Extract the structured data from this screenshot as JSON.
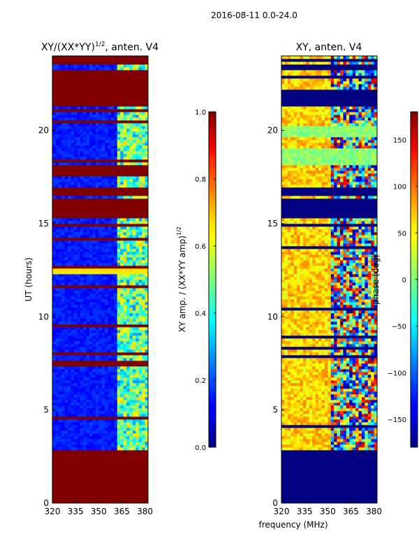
{
  "suptitle": "2016-08-11 0.0-24.0",
  "shared_xlabel": "frequency (MHz)",
  "chart_data": [
    {
      "type": "heatmap",
      "title_main": "XY/(XX*YY)",
      "title_sup": "1/2",
      "title_tail": ", anten. V4",
      "xlabel": "",
      "ylabel": "UT (hours)",
      "xlim": [
        320,
        382
      ],
      "ylim": [
        0,
        24
      ],
      "xticks": [
        320,
        335,
        350,
        365,
        380
      ],
      "yticks": [
        0,
        5,
        10,
        15,
        20
      ],
      "colorbar": {
        "label_main": "XY amp. / (XX*YY amp)",
        "label_sup": "1/2",
        "range": [
          0.0,
          1.0
        ],
        "ticks": [
          "0.0",
          "0.2",
          "0.4",
          "0.6",
          "0.8",
          "1.0"
        ],
        "tick_values": [
          0.0,
          0.2,
          0.4,
          0.6,
          0.8,
          1.0
        ]
      },
      "background_value": 0.15,
      "active_band_value": 0.45,
      "flagged_value": 1.0,
      "flagged_hours": [
        [
          0,
          2.8
        ],
        [
          15.3,
          16.3
        ],
        [
          16.5,
          17.0
        ],
        [
          17.6,
          18.1
        ],
        [
          21.3,
          23.3
        ],
        [
          23.6,
          24.0
        ]
      ],
      "bright_hours": [
        [
          12.35,
          12.6
        ]
      ],
      "bright_value": 0.65,
      "active_band_mhz": [
        363,
        382
      ]
    },
    {
      "type": "heatmap",
      "title": "XY, anten. V4",
      "xlabel": "frequency (MHz)",
      "ylabel": "",
      "xlim": [
        320,
        382
      ],
      "ylim": [
        0,
        24
      ],
      "xticks": [
        320,
        335,
        350,
        365,
        380
      ],
      "yticks": [
        0,
        5,
        10,
        15,
        20
      ],
      "colorbar": {
        "label": "phase (deg)",
        "range": [
          -180,
          180
        ],
        "ticks": [
          "−150",
          "−100",
          "−50",
          "0",
          "50",
          "100",
          "150"
        ],
        "tick_values": [
          -150,
          -100,
          -50,
          0,
          50,
          100,
          150
        ]
      },
      "background_value": 60,
      "flagged_value": -180,
      "flagged_hours": [
        [
          0,
          2.8
        ],
        [
          15.3,
          16.3
        ],
        [
          16.5,
          17.0
        ],
        [
          21.3,
          22.2
        ],
        [
          23.3,
          23.6
        ]
      ],
      "green_hours": [
        [
          18.1,
          19.0
        ],
        [
          19.6,
          20.3
        ]
      ],
      "green_value": 5,
      "active_band_mhz": [
        352,
        382
      ]
    }
  ]
}
